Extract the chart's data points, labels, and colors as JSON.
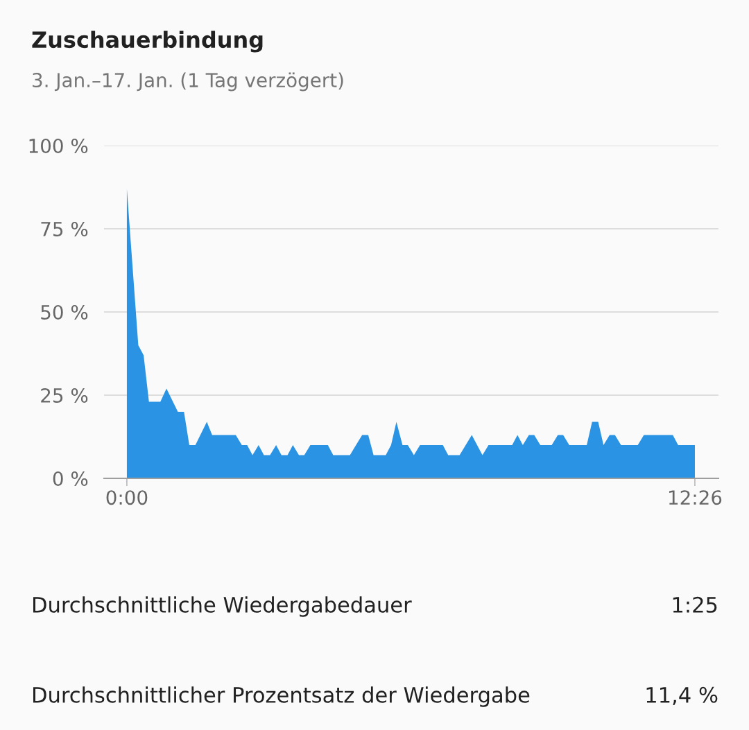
{
  "chart_data": {
    "type": "area",
    "title": "Zuschauerbindung",
    "subtitle": "3. Jan.–17. Jan. (1 Tag verzögert)",
    "x": [
      0,
      15,
      22,
      29,
      44,
      52,
      67,
      75,
      82,
      90,
      105,
      112,
      143,
      151,
      158,
      165,
      173,
      180,
      188,
      196,
      203,
      211,
      218,
      226,
      233,
      241,
      264,
      271,
      293,
      309,
      317,
      324,
      340,
      347,
      354,
      362,
      369,
      377,
      385,
      415,
      422,
      437,
      453,
      467,
      475,
      506,
      513,
      520,
      528,
      535,
      543,
      558,
      566,
      573,
      581,
      604,
      611,
      619,
      626,
      634,
      641,
      649,
      671,
      679,
      717,
      724,
      746
    ],
    "series": [
      {
        "color": "#2a93e4",
        "values": [
          87,
          40,
          37,
          23,
          23,
          27,
          20,
          20,
          10,
          10,
          17,
          13,
          13,
          10,
          10,
          7,
          10,
          7,
          7,
          10,
          7,
          7,
          10,
          7,
          7,
          10,
          10,
          7,
          7,
          13,
          13,
          7,
          7,
          10,
          17,
          10,
          10,
          7,
          10,
          10,
          7,
          7,
          13,
          7,
          10,
          10,
          13,
          10,
          13,
          13,
          10,
          10,
          13,
          13,
          10,
          10,
          17,
          17,
          10,
          13,
          13,
          10,
          10,
          13,
          13,
          10,
          10
        ]
      }
    ],
    "xlim": [
      -30,
      777
    ],
    "xticks": [
      {
        "value": 0,
        "label": "0:00"
      },
      {
        "value": 746,
        "label": "12:26"
      }
    ],
    "ylim": [
      0,
      100
    ],
    "yticks": [
      {
        "value": 0,
        "label": "0 %"
      },
      {
        "value": 25,
        "label": "25 %"
      },
      {
        "value": 50,
        "label": "50 %"
      },
      {
        "value": 75,
        "label": "75 %"
      },
      {
        "value": 100,
        "label": "100 %"
      }
    ],
    "grid": "y",
    "legend": false,
    "annotations": [
      "Durchschnittliche Wiedergabedauer",
      "1:25",
      "Durchschnittlicher Prozentsatz der Wiedergabe",
      "11,4 %"
    ]
  }
}
